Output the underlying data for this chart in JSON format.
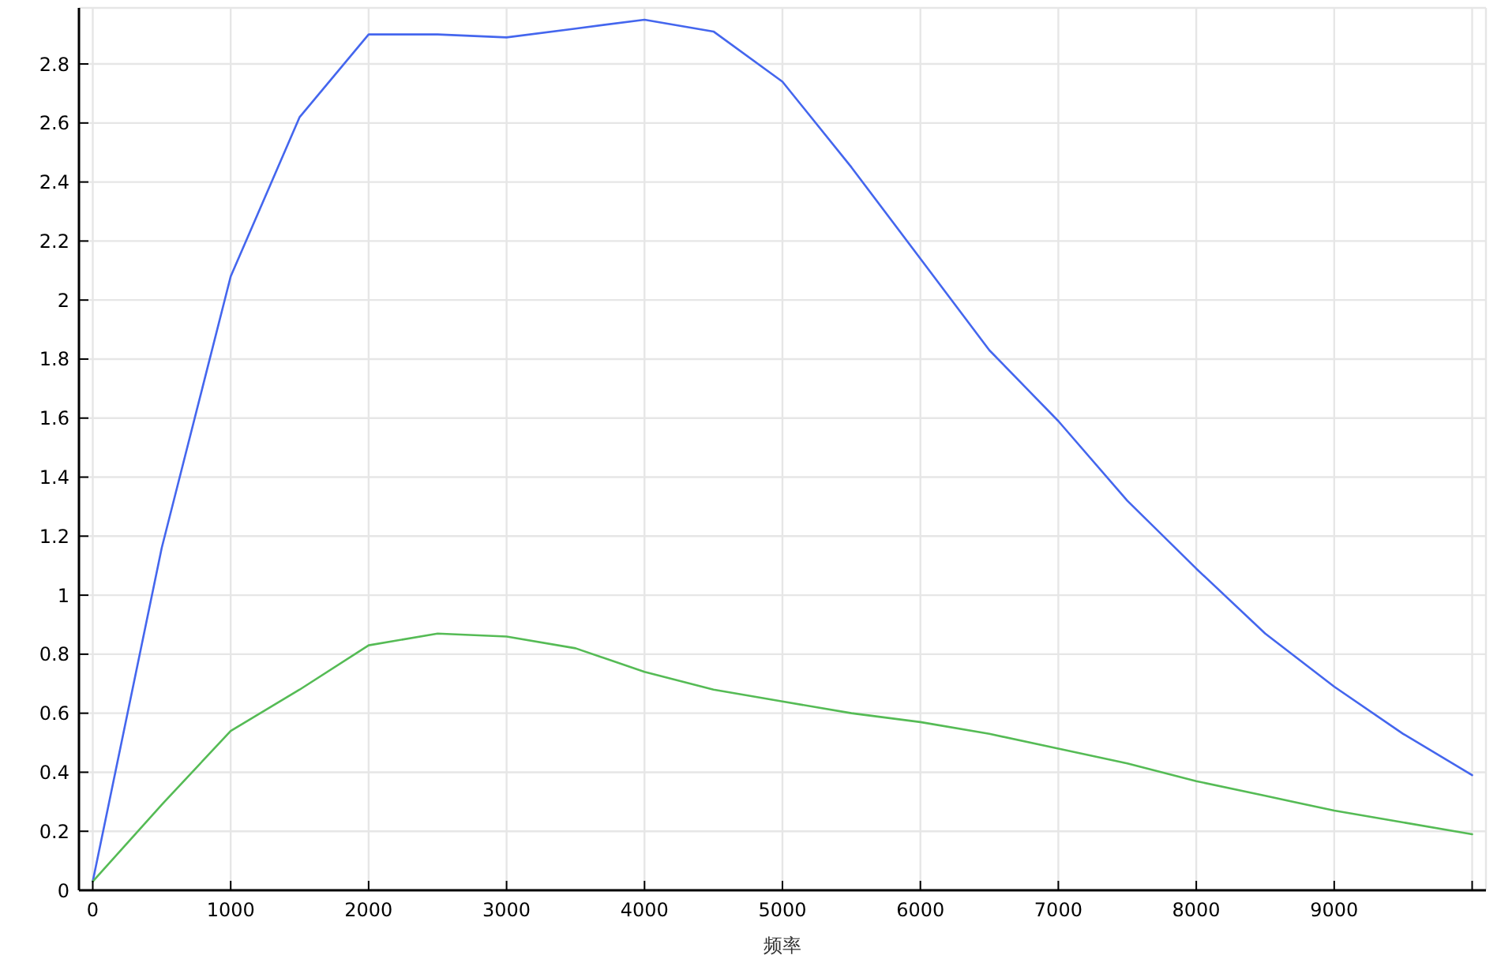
{
  "chart_data": {
    "type": "line",
    "xlabel": "频率",
    "x": [
      0,
      500,
      1000,
      1500,
      2000,
      2500,
      3000,
      3500,
      4000,
      4500,
      5000,
      5500,
      6000,
      6500,
      7000,
      7500,
      8000,
      8500,
      9000,
      9500,
      10000
    ],
    "series": [
      {
        "color": "#4466ee",
        "values": [
          0.03,
          1.16,
          2.08,
          2.62,
          2.9,
          2.9,
          2.89,
          2.92,
          2.95,
          2.91,
          2.74,
          2.45,
          2.14,
          1.83,
          1.59,
          1.32,
          1.09,
          0.87,
          0.69,
          0.53,
          0.39
        ]
      },
      {
        "color": "#55bb55",
        "values": [
          0.03,
          0.29,
          0.54,
          0.68,
          0.83,
          0.87,
          0.86,
          0.82,
          0.74,
          0.68,
          0.64,
          0.6,
          0.57,
          0.53,
          0.48,
          0.43,
          0.37,
          0.32,
          0.27,
          0.23,
          0.19
        ]
      }
    ],
    "xlim": [
      -100,
      10100
    ],
    "ylim": [
      0,
      2.99
    ],
    "xticks": [
      0,
      1000,
      2000,
      3000,
      4000,
      5000,
      6000,
      7000,
      8000,
      9000,
      {
        "value": 10000,
        "label": null
      }
    ],
    "yticks": [
      0,
      0.2,
      0.4,
      0.6,
      0.8,
      1,
      1.2,
      1.4,
      1.6,
      1.8,
      2,
      2.2,
      2.4,
      2.6,
      2.8
    ],
    "grid": true,
    "marker": "none",
    "line_style": "solid"
  }
}
